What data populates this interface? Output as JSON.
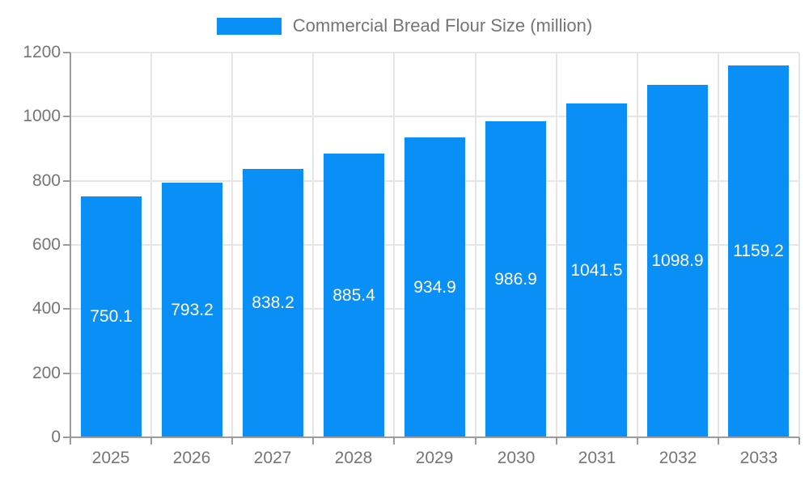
{
  "chart_data": {
    "type": "bar",
    "title": "Commercial Bread Flour Size (million)",
    "categories": [
      "2025",
      "2026",
      "2027",
      "2028",
      "2029",
      "2030",
      "2031",
      "2032",
      "2033"
    ],
    "values": [
      750.1,
      793.2,
      838.2,
      885.4,
      934.9,
      986.9,
      1041.5,
      1098.9,
      1159.2
    ],
    "value_labels": [
      "750.1",
      "793.2",
      "838.2",
      "885.4",
      "934.9",
      "986.9",
      "1041.5",
      "1098.9",
      "1159.2"
    ],
    "xlabel": "",
    "ylabel": "",
    "ylim": [
      0,
      1200
    ],
    "yticks": [
      0,
      200,
      400,
      600,
      800,
      1000,
      1200
    ],
    "grid": true,
    "legend_position": "top",
    "colors": {
      "bar": "#0a8ff7",
      "bar_label": "#ffffff",
      "axis_line": "#9b9b9b",
      "gridline": "#e6e6e6",
      "tick_label": "#757575",
      "legend_text": "#757575"
    }
  }
}
